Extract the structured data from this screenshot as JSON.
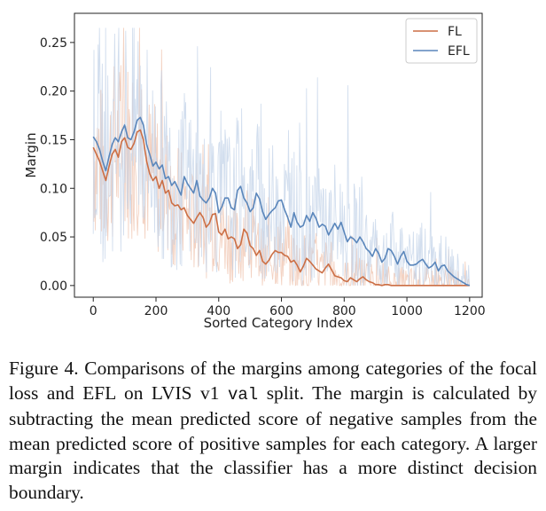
{
  "chart_data": {
    "type": "line",
    "title": "",
    "xlabel": "Sorted Category Index",
    "ylabel": "Margin",
    "xlim": [
      -60,
      1240
    ],
    "ylim": [
      -0.012,
      0.28
    ],
    "xticks": [
      0,
      200,
      400,
      600,
      800,
      1000,
      1200
    ],
    "yticks": [
      0.0,
      0.05,
      0.1,
      0.15,
      0.2,
      0.25
    ],
    "xtick_labels": [
      "0",
      "200",
      "400",
      "600",
      "800",
      "1000",
      "1200"
    ],
    "ytick_labels": [
      "0.00",
      "0.05",
      "0.10",
      "0.15",
      "0.20",
      "0.25"
    ],
    "legend_position": "top-right",
    "series": [
      {
        "name": "FL",
        "color": "#cc6f45",
        "x": [
          0,
          10,
          20,
          30,
          40,
          50,
          60,
          70,
          80,
          90,
          100,
          110,
          120,
          130,
          140,
          150,
          160,
          170,
          180,
          190,
          200,
          210,
          220,
          230,
          240,
          250,
          260,
          270,
          280,
          290,
          300,
          310,
          320,
          330,
          340,
          350,
          360,
          370,
          380,
          390,
          400,
          410,
          420,
          430,
          440,
          450,
          460,
          470,
          480,
          490,
          500,
          510,
          520,
          530,
          540,
          550,
          560,
          570,
          580,
          590,
          600,
          610,
          620,
          630,
          640,
          650,
          660,
          670,
          680,
          690,
          700,
          710,
          720,
          730,
          740,
          750,
          760,
          770,
          780,
          790,
          800,
          810,
          820,
          830,
          840,
          850,
          860,
          870,
          880,
          890,
          900,
          910,
          920,
          930,
          940,
          950,
          960,
          970,
          980,
          990,
          1000,
          1020,
          1040,
          1060,
          1080,
          1100,
          1120,
          1140,
          1160,
          1180,
          1200
        ],
        "values": [
          0.142,
          0.135,
          0.128,
          0.118,
          0.108,
          0.122,
          0.135,
          0.14,
          0.132,
          0.148,
          0.152,
          0.142,
          0.14,
          0.146,
          0.158,
          0.16,
          0.15,
          0.128,
          0.115,
          0.108,
          0.112,
          0.1,
          0.108,
          0.095,
          0.098,
          0.085,
          0.082,
          0.083,
          0.078,
          0.08,
          0.072,
          0.068,
          0.064,
          0.07,
          0.075,
          0.07,
          0.06,
          0.064,
          0.073,
          0.074,
          0.055,
          0.052,
          0.058,
          0.048,
          0.05,
          0.048,
          0.038,
          0.042,
          0.058,
          0.054,
          0.041,
          0.038,
          0.031,
          0.036,
          0.025,
          0.022,
          0.026,
          0.032,
          0.036,
          0.034,
          0.034,
          0.031,
          0.03,
          0.024,
          0.026,
          0.021,
          0.014,
          0.02,
          0.028,
          0.025,
          0.021,
          0.017,
          0.015,
          0.013,
          0.018,
          0.022,
          0.016,
          0.01,
          0.009,
          0.008,
          0.005,
          0.004,
          0.008,
          0.006,
          0.004,
          0.007,
          0.009,
          0.006,
          0.004,
          0.003,
          0.001,
          0.001,
          0.0,
          0.001,
          0.001,
          0.0,
          0.0,
          0.0,
          0.0,
          0.0,
          0.0,
          0.0,
          0.0,
          0.0,
          0.0,
          0.0,
          0.0,
          0.0,
          0.0,
          0.0,
          0.0
        ]
      },
      {
        "name": "EFL",
        "color": "#5a86bb",
        "x": [
          0,
          10,
          20,
          30,
          40,
          50,
          60,
          70,
          80,
          90,
          100,
          110,
          120,
          130,
          140,
          150,
          160,
          170,
          180,
          190,
          200,
          210,
          220,
          230,
          240,
          250,
          260,
          270,
          280,
          290,
          300,
          310,
          320,
          330,
          340,
          350,
          360,
          370,
          380,
          390,
          400,
          410,
          420,
          430,
          440,
          450,
          460,
          470,
          480,
          490,
          500,
          510,
          520,
          530,
          540,
          550,
          560,
          570,
          580,
          590,
          600,
          610,
          620,
          630,
          640,
          650,
          660,
          670,
          680,
          690,
          700,
          710,
          720,
          730,
          740,
          750,
          760,
          770,
          780,
          790,
          800,
          810,
          820,
          830,
          840,
          850,
          860,
          870,
          880,
          890,
          900,
          910,
          920,
          930,
          940,
          950,
          960,
          970,
          980,
          990,
          1000,
          1010,
          1020,
          1030,
          1040,
          1050,
          1060,
          1070,
          1080,
          1090,
          1100,
          1110,
          1120,
          1130,
          1140,
          1150,
          1160,
          1170,
          1180,
          1190,
          1200
        ],
        "values": [
          0.153,
          0.148,
          0.14,
          0.128,
          0.118,
          0.132,
          0.145,
          0.152,
          0.148,
          0.158,
          0.165,
          0.152,
          0.15,
          0.158,
          0.17,
          0.173,
          0.165,
          0.145,
          0.135,
          0.123,
          0.127,
          0.12,
          0.124,
          0.11,
          0.112,
          0.103,
          0.107,
          0.1,
          0.093,
          0.112,
          0.105,
          0.1,
          0.095,
          0.108,
          0.092,
          0.088,
          0.085,
          0.09,
          0.1,
          0.095,
          0.075,
          0.081,
          0.09,
          0.09,
          0.08,
          0.078,
          0.098,
          0.102,
          0.09,
          0.085,
          0.076,
          0.08,
          0.095,
          0.089,
          0.076,
          0.068,
          0.073,
          0.077,
          0.08,
          0.087,
          0.088,
          0.078,
          0.07,
          0.06,
          0.075,
          0.065,
          0.06,
          0.062,
          0.072,
          0.066,
          0.075,
          0.069,
          0.06,
          0.063,
          0.061,
          0.052,
          0.058,
          0.064,
          0.058,
          0.065,
          0.055,
          0.045,
          0.05,
          0.048,
          0.044,
          0.05,
          0.045,
          0.038,
          0.035,
          0.03,
          0.038,
          0.033,
          0.024,
          0.028,
          0.038,
          0.036,
          0.03,
          0.022,
          0.03,
          0.035,
          0.025,
          0.021,
          0.021,
          0.022,
          0.025,
          0.027,
          0.022,
          0.018,
          0.02,
          0.024,
          0.015,
          0.02,
          0.021,
          0.015,
          0.012,
          0.009,
          0.007,
          0.005,
          0.003,
          0.001,
          0.0
        ]
      }
    ]
  },
  "caption": {
    "part1": "Figure 4.  Comparisons of the margins among categories of the focal loss and EFL on LVIS v1 ",
    "code": "val",
    "part2": " split. The margin is calculated by subtracting the mean predicted score of negative samples from the mean predicted score of positive samples for each category. A larger margin indicates that the classifier has a more distinct decision boundary."
  }
}
